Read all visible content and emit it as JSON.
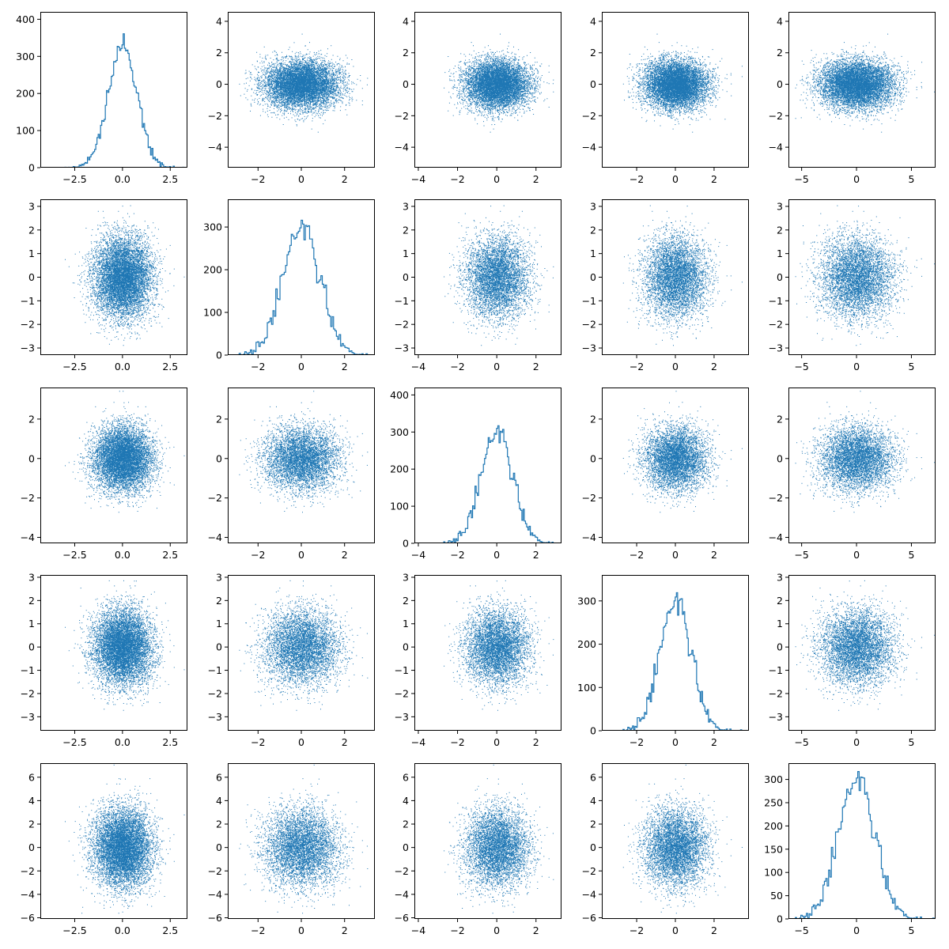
{
  "chart_data": {
    "type": "scatter-matrix",
    "grid": false,
    "dimensions": 5,
    "n_points": 10000,
    "color": "#1f77b4",
    "variables": [
      {
        "mean": 0.0,
        "std": 0.75,
        "range": [
          -4.3,
          3.4
        ],
        "ticks": [
          -2.5,
          0.0,
          2.5
        ],
        "tick_labels": [
          "−2.5",
          "0.0",
          "2.5"
        ]
      },
      {
        "mean": 0.0,
        "std": 0.85,
        "range": [
          -3.4,
          3.4
        ],
        "ticks": [
          -2,
          0,
          2
        ],
        "tick_labels": [
          "−2",
          "0",
          "2"
        ]
      },
      {
        "mean": 0.0,
        "std": 0.8,
        "range": [
          -4.2,
          3.3
        ],
        "ticks": [
          -4,
          -2,
          0,
          2
        ],
        "tick_labels": [
          "−4",
          "−2",
          "0",
          "2"
        ]
      },
      {
        "mean": 0.0,
        "std": 0.8,
        "range": [
          -3.8,
          3.8
        ],
        "ticks": [
          -2,
          0,
          2
        ],
        "tick_labels": [
          "−2",
          "0",
          "2"
        ]
      },
      {
        "mean": 0.0,
        "std": 1.65,
        "range": [
          -6.2,
          7.2
        ],
        "ticks": [
          -5,
          0,
          5
        ],
        "tick_labels": [
          "−5",
          "0",
          "5"
        ]
      }
    ],
    "scatter_y_axes": [
      {
        "range": [
          -5.3,
          4.6
        ],
        "ticks": [
          -4,
          -2,
          0,
          2,
          4
        ],
        "tick_labels": [
          "−4",
          "−2",
          "0",
          "2",
          "4"
        ]
      },
      {
        "range": [
          -3.3,
          3.3
        ],
        "ticks": [
          -3,
          -2,
          -1,
          0,
          1,
          2,
          3
        ],
        "tick_labels": [
          "−3",
          "−2",
          "−1",
          "0",
          "1",
          "2",
          "3"
        ]
      },
      {
        "range": [
          -4.3,
          3.6
        ],
        "ticks": [
          -4,
          -2,
          0,
          2
        ],
        "tick_labels": [
          "−4",
          "−2",
          "0",
          "2"
        ]
      },
      {
        "range": [
          -3.6,
          3.1
        ],
        "ticks": [
          -3,
          -2,
          -1,
          0,
          1,
          2,
          3
        ],
        "tick_labels": [
          "−3",
          "−2",
          "−1",
          "0",
          "1",
          "2",
          "3"
        ]
      },
      {
        "range": [
          -6.1,
          7.2
        ],
        "ticks": [
          -6,
          -4,
          -2,
          0,
          2,
          4,
          6
        ],
        "tick_labels": [
          "−6",
          "−4",
          "−2",
          "0",
          "2",
          "4",
          "6"
        ]
      }
    ],
    "diagonal_histograms": [
      {
        "bins": 100,
        "ylim": [
          0,
          420
        ],
        "yticks": [
          0,
          100,
          200,
          300,
          400
        ],
        "ytick_labels": [
          "0",
          "100",
          "200",
          "300",
          "400"
        ]
      },
      {
        "bins": 100,
        "ylim": [
          0,
          365
        ],
        "yticks": [
          0,
          100,
          200,
          300
        ],
        "ytick_labels": [
          "0",
          "100",
          "200",
          "300"
        ]
      },
      {
        "bins": 100,
        "ylim": [
          0,
          420
        ],
        "yticks": [
          0,
          100,
          200,
          300,
          400
        ],
        "ytick_labels": [
          "0",
          "100",
          "200",
          "300",
          "400"
        ]
      },
      {
        "bins": 100,
        "ylim": [
          0,
          360
        ],
        "yticks": [
          0,
          100,
          200,
          300
        ],
        "ytick_labels": [
          "0",
          "100",
          "200",
          "300"
        ]
      },
      {
        "bins": 100,
        "ylim": [
          0,
          335
        ],
        "yticks": [
          0,
          50,
          100,
          150,
          200,
          250,
          300
        ],
        "ytick_labels": [
          "0",
          "50",
          "100",
          "150",
          "200",
          "250",
          "300"
        ]
      }
    ]
  }
}
